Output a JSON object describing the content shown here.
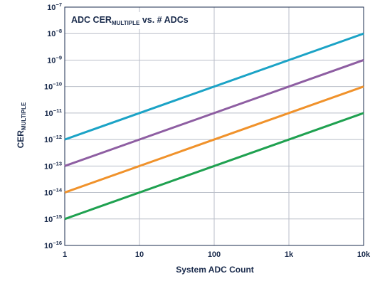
{
  "chart_data": {
    "type": "line",
    "title": "ADC CER",
    "title_subscript": "MULTIPLE",
    "title_suffix": " vs. # ADCs",
    "xlabel": "System ADC Count",
    "ylabel": "CER",
    "ylabel_subscript": "MULTIPLE",
    "x_scale": "log",
    "y_scale": "log",
    "xlim": [
      1,
      10000
    ],
    "ylim": [
      1e-16,
      1e-07
    ],
    "grid": true,
    "x_ticks": [
      {
        "value": 1,
        "label": "1"
      },
      {
        "value": 10,
        "label": "10"
      },
      {
        "value": 100,
        "label": "100"
      },
      {
        "value": 1000,
        "label": "1k"
      },
      {
        "value": 10000,
        "label": "10k"
      }
    ],
    "y_ticks": [
      {
        "value": 1e-07,
        "base": "10",
        "exp": "−7"
      },
      {
        "value": 1e-08,
        "base": "10",
        "exp": "−8"
      },
      {
        "value": 1e-09,
        "base": "10",
        "exp": "−9"
      },
      {
        "value": 1e-10,
        "base": "10",
        "exp": "−10"
      },
      {
        "value": 1e-11,
        "base": "10",
        "exp": "−11"
      },
      {
        "value": 1e-12,
        "base": "10",
        "exp": "−12"
      },
      {
        "value": 1e-13,
        "base": "10",
        "exp": "−13"
      },
      {
        "value": 1e-14,
        "base": "10",
        "exp": "−14"
      },
      {
        "value": 1e-15,
        "base": "10",
        "exp": "−15"
      },
      {
        "value": 1e-16,
        "base": "10",
        "exp": "−16"
      }
    ],
    "series": [
      {
        "color": "#1ba3c6",
        "x": [
          1,
          10000
        ],
        "y": [
          1e-12,
          1e-08
        ]
      },
      {
        "color": "#8e5ea2",
        "x": [
          1,
          10000
        ],
        "y": [
          1e-13,
          1e-09
        ]
      },
      {
        "color": "#f0922b",
        "x": [
          1,
          10000
        ],
        "y": [
          1e-14,
          1e-10
        ]
      },
      {
        "color": "#1fa150",
        "x": [
          1,
          10000
        ],
        "y": [
          1e-15,
          1e-11
        ]
      }
    ]
  }
}
